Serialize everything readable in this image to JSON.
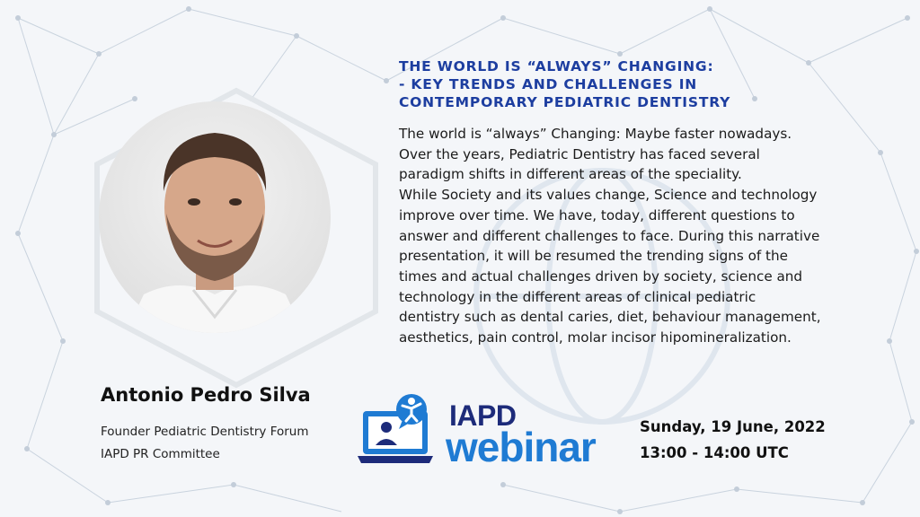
{
  "talk": {
    "title_lines": [
      "THE WORLD IS “ALWAYS” CHANGING:",
      "- KEY TRENDS AND CHALLENGES IN",
      "CONTEMPORARY PEDIATRIC DENTISTRY"
    ],
    "description_lines": [
      "The world is “always” Changing: Maybe faster nowadays.",
      "Over the years, Pediatric Dentistry has faced several",
      "paradigm shifts in different areas of the speciality.",
      "While Society and its values change, Science and technology",
      "improve over time. We have, today, different questions to",
      "answer and different challenges to face. During this narrative",
      "presentation, it will be resumed the trending signs of the",
      "times and actual challenges driven by society, science and",
      "technology in the different areas of clinical pediatric",
      "dentistry such as dental caries, diet, behaviour management,",
      "aesthetics, pain control, molar incisor hipomineralization."
    ]
  },
  "speaker": {
    "name": "Antonio Pedro Silva",
    "roles": [
      "Founder Pediatric Dentistry Forum",
      "IAPD PR Committee"
    ]
  },
  "logo": {
    "line1": "IAPD",
    "line2": "webinar",
    "icon": "webinar-laptop-icon"
  },
  "schedule": {
    "date": "Sunday, 19 June, 2022",
    "time": "13:00 - 14:00 UTC"
  },
  "colors": {
    "title": "#1d3ea0",
    "logo_dark": "#1d2b7a",
    "logo_blue": "#1f7bd3",
    "background": "#f4f6f9"
  }
}
